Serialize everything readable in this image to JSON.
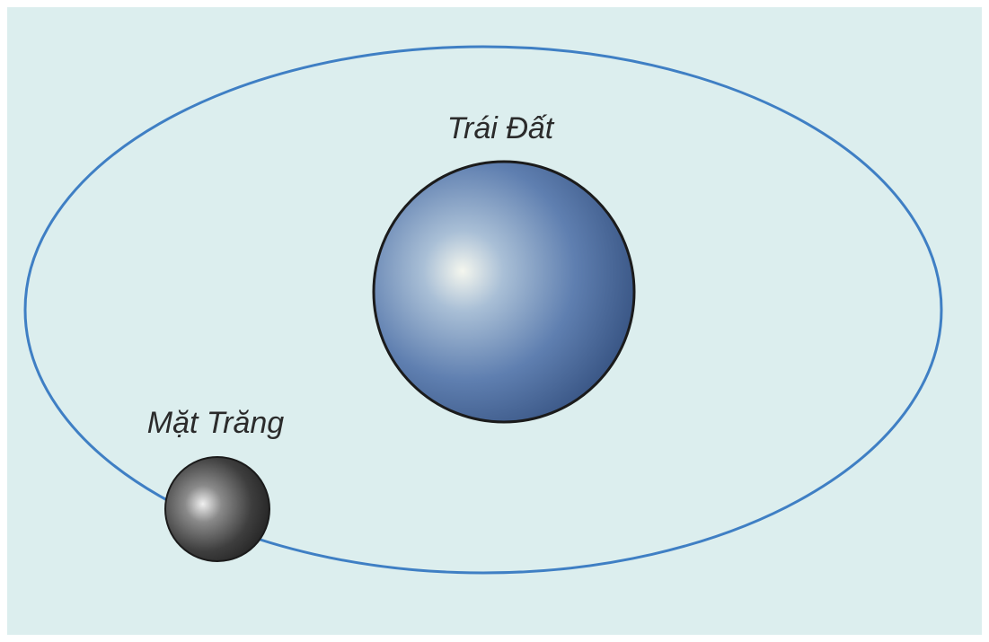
{
  "nodes": [
    {
      "label": "Trái Đất"
    },
    {
      "label": "Mặt Trăng"
    }
  ]
}
